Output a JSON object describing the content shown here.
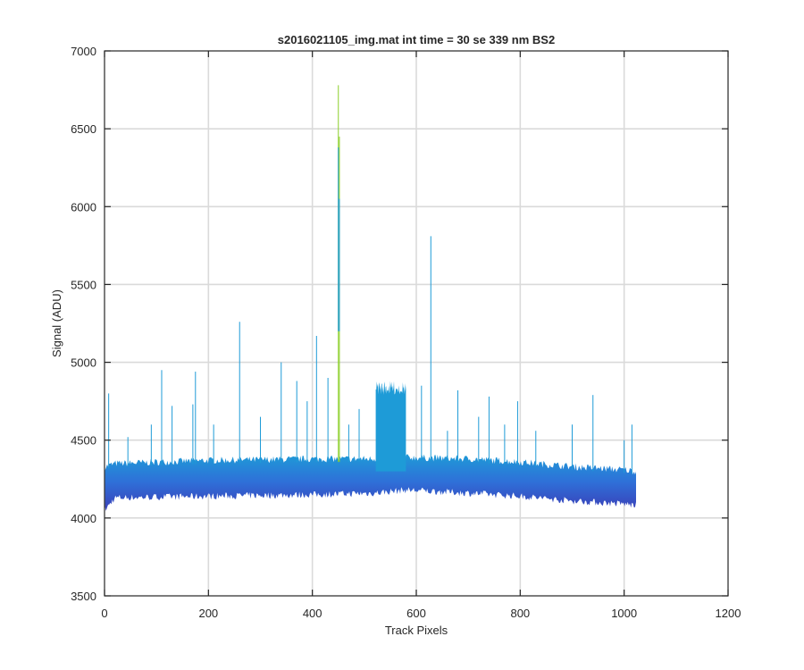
{
  "chart_data": {
    "type": "line",
    "title": "s2016021105_img.mat int time = 30 se  339 nm BS2",
    "xlabel": "Track Pixels",
    "ylabel": "Signal (ADU)",
    "xlim": [
      0,
      1200
    ],
    "ylim": [
      3500,
      7000
    ],
    "x_ticks": [
      0,
      200,
      400,
      600,
      800,
      1000,
      1200
    ],
    "y_ticks": [
      3500,
      4000,
      4500,
      5000,
      5500,
      6000,
      6500,
      7000
    ],
    "x_tick_labels": [
      "0",
      "200",
      "400",
      "600",
      "800",
      "1000",
      "1200"
    ],
    "y_tick_labels": [
      "3500",
      "4000",
      "4500",
      "5000",
      "5500",
      "6000",
      "6500",
      "7000"
    ],
    "grid": true,
    "legend": "none",
    "pixel_range": [
      1,
      1024
    ],
    "band": {
      "description_points": [
        {
          "x": 1,
          "low": 4050,
          "high": 4330
        },
        {
          "x": 20,
          "low": 4130,
          "high": 4350
        },
        {
          "x": 200,
          "low": 4140,
          "high": 4370
        },
        {
          "x": 400,
          "low": 4150,
          "high": 4380
        },
        {
          "x": 520,
          "low": 4160,
          "high": 4380
        },
        {
          "x": 580,
          "low": 4180,
          "high": 4390
        },
        {
          "x": 700,
          "low": 4160,
          "high": 4380
        },
        {
          "x": 800,
          "low": 4140,
          "high": 4360
        },
        {
          "x": 900,
          "low": 4110,
          "high": 4330
        },
        {
          "x": 1000,
          "low": 4090,
          "high": 4310
        },
        {
          "x": 1024,
          "low": 4080,
          "high": 4300
        }
      ]
    },
    "plateau": {
      "x_start": 522,
      "x_end": 580,
      "low": 4300,
      "high": 4900
    },
    "spikes": [
      {
        "x": 8,
        "y": 4800
      },
      {
        "x": 45,
        "y": 4520
      },
      {
        "x": 90,
        "y": 4600
      },
      {
        "x": 110,
        "y": 4950
      },
      {
        "x": 130,
        "y": 4720
      },
      {
        "x": 170,
        "y": 4730
      },
      {
        "x": 175,
        "y": 4940
      },
      {
        "x": 210,
        "y": 4600
      },
      {
        "x": 260,
        "y": 5260
      },
      {
        "x": 300,
        "y": 4650
      },
      {
        "x": 340,
        "y": 5000
      },
      {
        "x": 370,
        "y": 4880
      },
      {
        "x": 390,
        "y": 4750
      },
      {
        "x": 408,
        "y": 5170
      },
      {
        "x": 430,
        "y": 4900
      },
      {
        "x": 450,
        "y": 6780
      },
      {
        "x": 452,
        "y": 6450
      },
      {
        "x": 470,
        "y": 4600
      },
      {
        "x": 490,
        "y": 4700
      },
      {
        "x": 610,
        "y": 4850
      },
      {
        "x": 628,
        "y": 5810
      },
      {
        "x": 660,
        "y": 4560
      },
      {
        "x": 680,
        "y": 4820
      },
      {
        "x": 720,
        "y": 4650
      },
      {
        "x": 740,
        "y": 4780
      },
      {
        "x": 770,
        "y": 4600
      },
      {
        "x": 795,
        "y": 4750
      },
      {
        "x": 830,
        "y": 4560
      },
      {
        "x": 900,
        "y": 4600
      },
      {
        "x": 940,
        "y": 4790
      },
      {
        "x": 1000,
        "y": 4500
      },
      {
        "x": 1015,
        "y": 4600
      }
    ],
    "colors": {
      "band_light": "#1e9bd7",
      "band_mid": "#2f6fd8",
      "band_dark": "#3a3fb8",
      "spike_highlight": "#8ccf2a",
      "grid": "#dadada",
      "axes": "#262626"
    }
  }
}
